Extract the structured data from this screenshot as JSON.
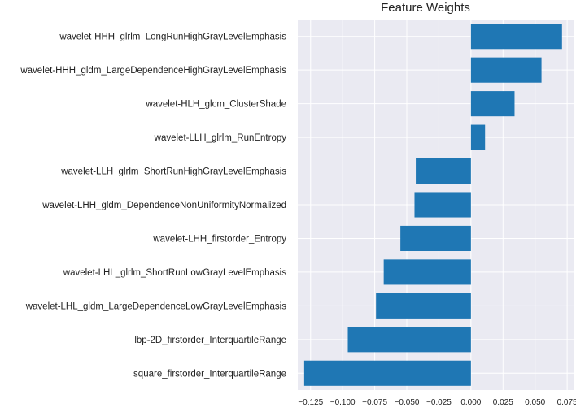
{
  "chart_data": {
    "type": "bar",
    "orientation": "horizontal",
    "title": "Feature Weights",
    "xlabel": "",
    "ylabel": "",
    "xlim": [
      -0.135,
      0.08
    ],
    "grid": true,
    "colors": {
      "bar": "#1f77b4",
      "plot_background": "#eaeaf2",
      "grid": "#ffffff"
    },
    "categories": [
      "wavelet-HHH_glrlm_LongRunHighGrayLevelEmphasis",
      "wavelet-HHH_gldm_LargeDependenceHighGrayLevelEmphasis",
      "wavelet-HLH_glcm_ClusterShade",
      "wavelet-LLH_glrlm_RunEntropy",
      "wavelet-LLH_glrlm_ShortRunHighGrayLevelEmphasis",
      "wavelet-LHH_gldm_DependenceNonUniformityNormalized",
      "wavelet-LHH_firstorder_Entropy",
      "wavelet-LHL_glrlm_ShortRunLowGrayLevelEmphasis",
      "wavelet-LHL_gldm_LargeDependenceLowGrayLevelEmphasis",
      "lbp-2D_firstorder_InterquartileRange",
      "square_firstorder_InterquartileRange"
    ],
    "values": [
      0.071,
      0.055,
      0.034,
      0.011,
      -0.043,
      -0.044,
      -0.055,
      -0.068,
      -0.074,
      -0.096,
      -0.13
    ],
    "xticks": [
      -0.125,
      -0.1,
      -0.075,
      -0.05,
      -0.025,
      0.0,
      0.025,
      0.05,
      0.075
    ],
    "xtick_labels": [
      "−0.125",
      "−0.100",
      "−0.075",
      "−0.050",
      "−0.025",
      "0.000",
      "0.025",
      "0.050",
      "0.075"
    ]
  }
}
